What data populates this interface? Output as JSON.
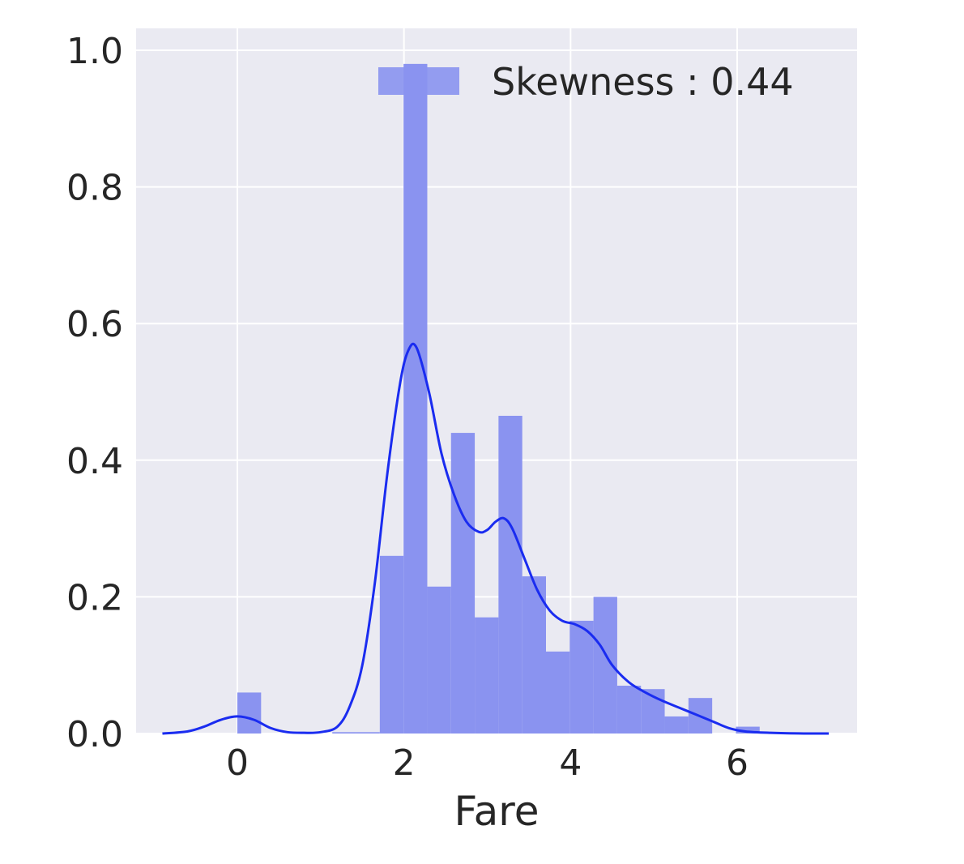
{
  "chart_data": {
    "type": "bar",
    "subtype": "histogram-with-kde",
    "title": "",
    "xlabel": "Fare",
    "ylabel": "",
    "xlim": [
      -1.2,
      7.5
    ],
    "ylim": [
      0,
      1.03
    ],
    "xticks": [
      0,
      2,
      4,
      6
    ],
    "xtick_labels": [
      "0",
      "2",
      "4",
      "6"
    ],
    "yticks": [
      0.0,
      0.2,
      0.4,
      0.6,
      0.8,
      1.0
    ],
    "ytick_labels": [
      "0.0",
      "0.2",
      "0.4",
      "0.6",
      "0.8",
      "1.0"
    ],
    "grid": true,
    "legend_position": "top-right",
    "colors": {
      "plot_background": "#eaeaf2",
      "grid": "#ffffff",
      "bar": "#8a93f0",
      "kde_line": "#1a2cf0",
      "text": "#262626"
    },
    "histogram": {
      "bin_edges": [
        0.0,
        0.285,
        0.57,
        0.855,
        1.14,
        1.425,
        1.71,
        1.995,
        2.28,
        2.565,
        2.85,
        3.135,
        3.42,
        3.705,
        3.99,
        4.275,
        4.56,
        4.845,
        5.13,
        5.415,
        5.7,
        5.985,
        6.27
      ],
      "values": [
        0.06,
        0.0,
        0.0,
        0.0,
        0.002,
        0.002,
        0.26,
        0.98,
        0.215,
        0.44,
        0.17,
        0.465,
        0.23,
        0.12,
        0.165,
        0.2,
        0.07,
        0.065,
        0.025,
        0.052,
        0.0,
        0.01
      ]
    },
    "kde": {
      "x": [
        -0.9,
        -0.6,
        -0.4,
        -0.2,
        0.0,
        0.2,
        0.4,
        0.6,
        0.8,
        1.0,
        1.2,
        1.35,
        1.5,
        1.65,
        1.8,
        1.95,
        2.05,
        2.15,
        2.3,
        2.45,
        2.6,
        2.75,
        2.9,
        3.0,
        3.1,
        3.2,
        3.3,
        3.45,
        3.6,
        3.75,
        3.9,
        4.05,
        4.2,
        4.35,
        4.5,
        4.7,
        4.9,
        5.1,
        5.3,
        5.5,
        5.7,
        5.9,
        6.1,
        6.4,
        6.8,
        7.1
      ],
      "y": [
        0.0,
        0.003,
        0.01,
        0.02,
        0.025,
        0.02,
        0.008,
        0.002,
        0.001,
        0.002,
        0.01,
        0.04,
        0.1,
        0.22,
        0.38,
        0.51,
        0.56,
        0.565,
        0.5,
        0.41,
        0.35,
        0.31,
        0.295,
        0.298,
        0.31,
        0.315,
        0.3,
        0.255,
        0.21,
        0.18,
        0.165,
        0.16,
        0.15,
        0.13,
        0.1,
        0.075,
        0.06,
        0.048,
        0.038,
        0.028,
        0.018,
        0.008,
        0.003,
        0.001,
        0.0,
        0.0
      ]
    },
    "legend": {
      "label": "Skewness : 0.44"
    }
  }
}
